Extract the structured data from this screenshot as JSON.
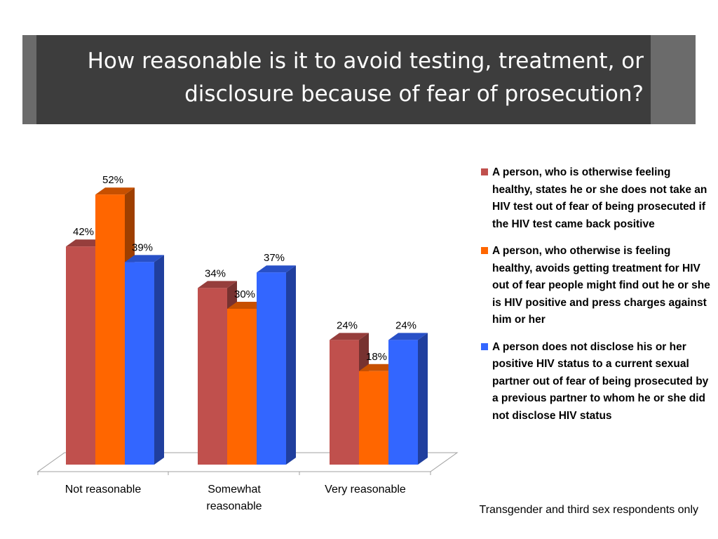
{
  "slide": {
    "title": "How reasonable is it to avoid testing, treatment, or disclosure because of fear of prosecution?",
    "footnote": "Transgender and third sex respondents only"
  },
  "colors": {
    "banner_outer": "#6b6b6b",
    "banner_inner": "#3d3d3d",
    "stripe": [
      "#a30000",
      "#ff6a00",
      "#99cc11"
    ]
  },
  "chart_data": {
    "type": "bar",
    "categories": [
      "Not reasonable",
      "Somewhat reasonable",
      "Very reasonable"
    ],
    "series": [
      {
        "name": "A person, who is otherwise feeling healthy, states he or she does not take an HIV test out of fear of being prosecuted if the HIV test came back positive",
        "values": [
          42,
          34,
          24
        ],
        "labels": [
          "42%",
          "34%",
          "24%"
        ],
        "color": "#c0504d"
      },
      {
        "name": "A person, who otherwise is feeling healthy, avoids getting treatment for HIV out of fear people might find out he or she is HIV positive and press charges against him or her",
        "values": [
          52,
          30,
          18
        ],
        "labels": [
          "52%",
          "30%",
          "18%"
        ],
        "color": "#ff6600"
      },
      {
        "name": "A person does not disclose his or her positive HIV status to a current sexual partner out of fear of being prosecuted by a previous partner to whom he or she did not disclose HIV status",
        "values": [
          39,
          37,
          24
        ],
        "labels": [
          "39%",
          "37%",
          "24%"
        ],
        "color": "#3366ff"
      }
    ],
    "ylim": [
      0,
      60
    ],
    "legend_position": "right",
    "grid": false,
    "style": "3d"
  }
}
